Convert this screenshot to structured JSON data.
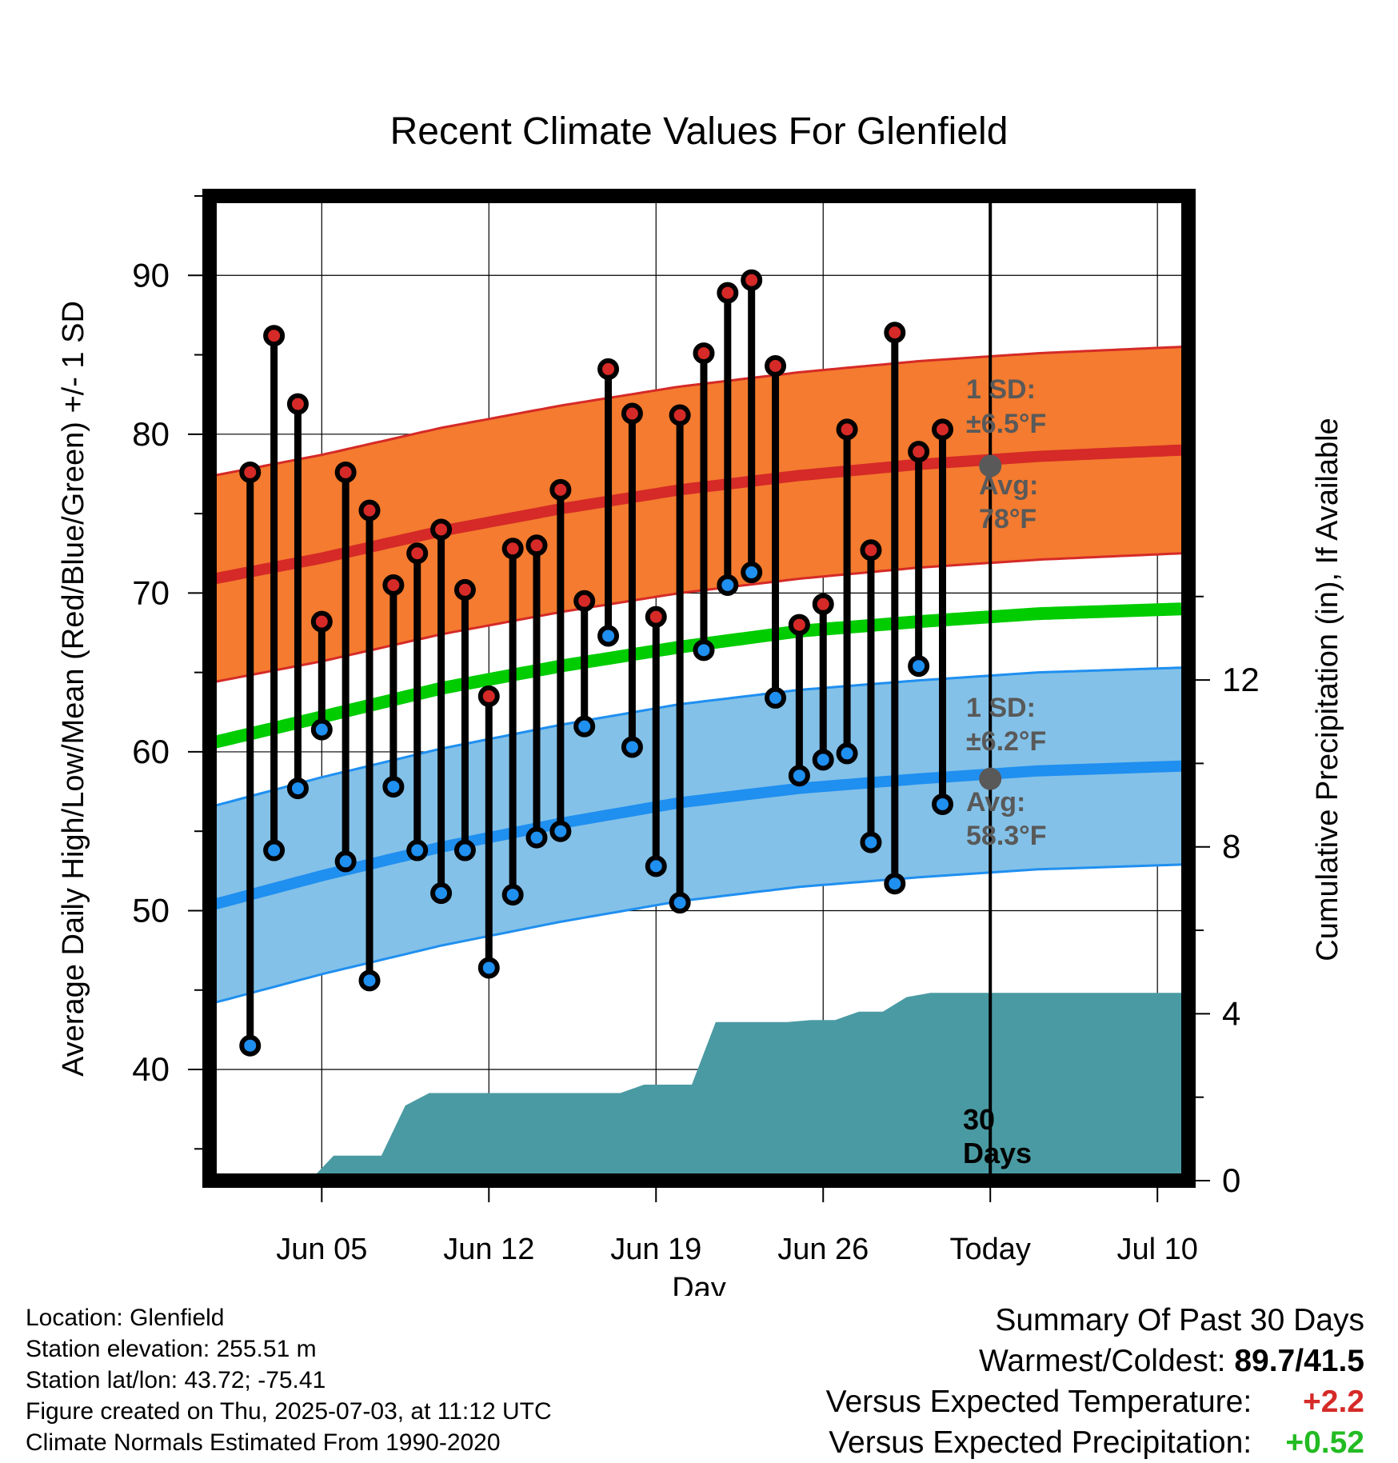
{
  "chart_data": {
    "type": "line",
    "title": "Recent Climate Values For Glenfield",
    "xlabel": "Day",
    "ylabel_left": "Average Daily High/Low/Mean (Red/Blue/Green) +/- 1 SD",
    "ylabel_right": "Cumulative Precipitation (in), If Available",
    "x_unit": "day (Jun 2 = 2, Jul 1 = 31)",
    "x_range": [
      0.3,
      41.3
    ],
    "xticks": [
      {
        "day": 5,
        "label": "Jun 05"
      },
      {
        "day": 12,
        "label": "Jun 12"
      },
      {
        "day": 19,
        "label": "Jun 19"
      },
      {
        "day": 26,
        "label": "Jun 26"
      },
      {
        "day": 33,
        "label": "Today"
      },
      {
        "day": 40,
        "label": "Jul 10"
      }
    ],
    "ylim_left": [
      33,
      95
    ],
    "yticks_left": [
      40,
      50,
      60,
      70,
      80,
      90
    ],
    "ylim_right": [
      0,
      23.6
    ],
    "yticks_right": [
      0,
      4,
      8,
      12
    ],
    "grid": true,
    "today_day": 33,
    "today_label": [
      "30",
      "Days"
    ],
    "daily_days": [
      2,
      3,
      4,
      5,
      6,
      7,
      8,
      9,
      10,
      11,
      12,
      13,
      14,
      15,
      16,
      17,
      18,
      19,
      20,
      21,
      22,
      23,
      24,
      25,
      26,
      27,
      28,
      29,
      30,
      31,
      32
    ],
    "daily_high": [
      77.6,
      86.2,
      81.9,
      68.2,
      77.6,
      75.2,
      70.5,
      72.5,
      74.0,
      70.2,
      63.5,
      72.8,
      73.0,
      76.5,
      69.5,
      84.1,
      81.3,
      68.5,
      81.2,
      85.1,
      88.9,
      89.7,
      84.3,
      68.0,
      69.3,
      80.3,
      72.7,
      86.4,
      78.9,
      80.3,
      null
    ],
    "daily_low": [
      41.5,
      53.8,
      57.7,
      61.4,
      53.1,
      45.6,
      57.8,
      53.8,
      51.1,
      53.8,
      46.4,
      51.0,
      54.6,
      55.0,
      61.6,
      67.3,
      60.3,
      52.8,
      50.5,
      66.4,
      70.5,
      71.3,
      63.4,
      58.5,
      59.5,
      59.9,
      54.3,
      51.7,
      65.4,
      56.7,
      null
    ],
    "normal_days": [
      0.5,
      5,
      10,
      15,
      20,
      25,
      30,
      35,
      41
    ],
    "normal_high": [
      70.9,
      72.2,
      73.9,
      75.3,
      76.5,
      77.4,
      78.1,
      78.6,
      79.0
    ],
    "normal_low": [
      50.4,
      52.2,
      54.0,
      55.5,
      56.8,
      57.7,
      58.3,
      58.8,
      59.1
    ],
    "normal_mean": [
      60.6,
      62.2,
      64.0,
      65.4,
      66.6,
      67.6,
      68.2,
      68.7,
      69.0
    ],
    "sd_high": 6.5,
    "sd_low": 6.2,
    "precip": {
      "days": [
        4.5,
        5.5,
        7.5,
        8.5,
        9.5,
        17.5,
        18.5,
        20.5,
        21.5,
        24.5,
        25.5,
        26.5,
        27.5,
        28.5,
        29.5,
        30.5,
        41
      ],
      "values": [
        0.0,
        0.6,
        0.6,
        1.8,
        2.1,
        2.1,
        2.3,
        2.3,
        3.8,
        3.8,
        3.85,
        3.85,
        4.05,
        4.05,
        4.4,
        4.5,
        4.5
      ]
    },
    "annotations": {
      "high_sd": [
        "1 SD:",
        "±6.5°F"
      ],
      "high_avg": [
        "Avg:",
        "78°F"
      ],
      "low_sd": [
        "1 SD:",
        "±6.2°F"
      ],
      "low_avg": [
        "Avg:",
        "58.3°F"
      ],
      "avg_marker_values": [
        78.0,
        58.3
      ]
    },
    "colors": {
      "high_band": "#f47b2f",
      "high_line": "#d52a27",
      "high_edge": "#d52a27",
      "low_band": "#83c1e8",
      "low_line": "#1f8ff0",
      "low_edge": "#1f8ff0",
      "mean_line": "#00cc00",
      "precip": "#4a9aa3",
      "high_dot": "#d52a27",
      "low_dot": "#1f8ff0",
      "annotation": "#595959"
    }
  },
  "info": {
    "location": "Location: Glenfield",
    "elevation": "Station elevation: 255.51 m",
    "latlon": "Station lat/lon: 43.72; -75.41",
    "created": "Figure created on Thu, 2025-07-03, at 11:12 UTC",
    "normals": "Climate Normals Estimated From 1990-2020"
  },
  "summary": {
    "title": "Summary Of Past 30 Days",
    "warm_cold_label": "Warmest/Coldest:",
    "warm_cold_value": "89.7/41.5",
    "temp_label": "Versus Expected Temperature:",
    "temp_value": "+2.2",
    "temp_color": "#d52a27",
    "precip_label": "Versus Expected Precipitation:",
    "precip_value": "+0.52",
    "precip_color": "#22bb22"
  }
}
